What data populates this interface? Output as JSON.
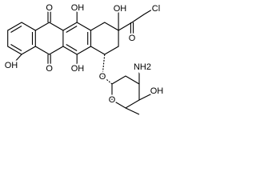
{
  "atoms": [
    "O",
    "OH",
    "OH",
    "O",
    "Cl",
    "OH",
    "O",
    "OH",
    "O",
    "O",
    "NH2",
    "OH"
  ]
}
